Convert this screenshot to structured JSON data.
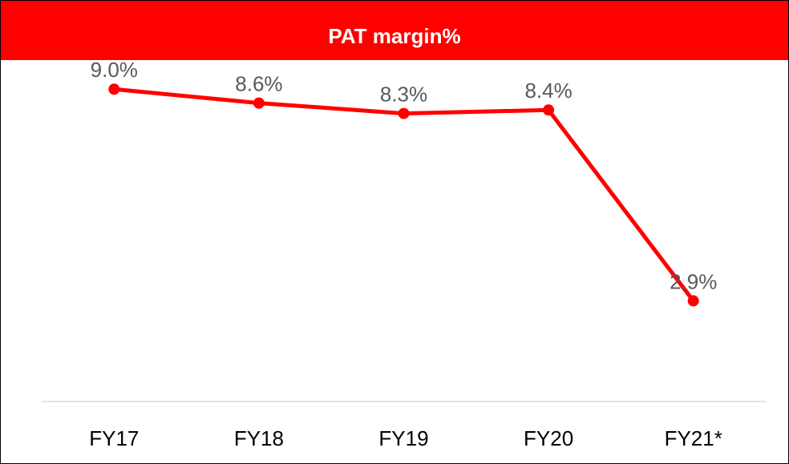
{
  "chart_data": {
    "type": "line",
    "title": "PAT margin%",
    "categories": [
      "FY17",
      "FY18",
      "FY19",
      "FY20",
      "FY21*"
    ],
    "series": [
      {
        "name": "PAT margin%",
        "color": "#ff0000",
        "values": [
          9.0,
          8.6,
          8.3,
          8.4,
          2.9
        ],
        "value_labels": [
          "9.0%",
          "8.6%",
          "8.3%",
          "8.4%",
          "2.9%"
        ]
      }
    ],
    "ylim": [
      0,
      10
    ]
  }
}
